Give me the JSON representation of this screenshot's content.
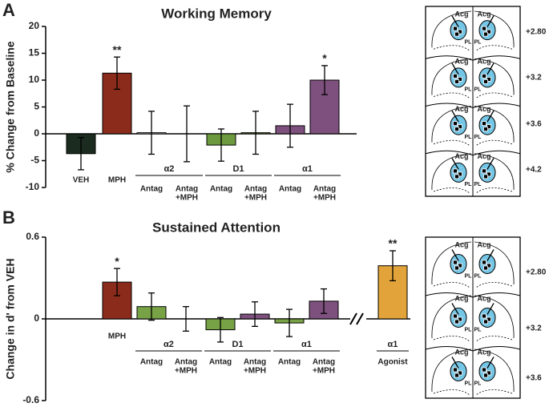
{
  "chart_data": [
    {
      "type": "bar",
      "panel_label": "A",
      "title": "Working Memory",
      "y_label": "% Change from Baseline",
      "categories": [
        "VEH",
        "MPH",
        "Antag",
        [
          "Antag",
          "+MPH"
        ],
        "Antag",
        [
          "Antag",
          "+MPH"
        ],
        "Antag",
        [
          "Antag",
          "+MPH"
        ]
      ],
      "groups": [
        null,
        null,
        "α2",
        "α2",
        "D1",
        "D1",
        "α1",
        "α1"
      ],
      "values": [
        -3.7,
        11.3,
        0.2,
        0,
        -2.1,
        0.2,
        1.5,
        10
      ],
      "errors": [
        3,
        3,
        4,
        5.2,
        3,
        4,
        4,
        2.7
      ],
      "annotations": [
        null,
        "**",
        null,
        null,
        null,
        null,
        null,
        "*"
      ],
      "colors": [
        "#1b2b1f",
        "#8b2b1b",
        "#ffffff",
        "#ffffff",
        "#6e9a3f",
        "#6e9a3f",
        "#7d507d",
        "#7d507d"
      ],
      "ylim": [
        -10,
        20
      ],
      "yticks": [
        -10,
        -5,
        0,
        5,
        10,
        15,
        20
      ]
    },
    {
      "type": "bar",
      "panel_label": "B",
      "title": "Sustained Attention",
      "y_label": "Change in d' from VEH",
      "categories": [
        "MPH",
        "Antag",
        [
          "Antag",
          "+MPH"
        ],
        "Antag",
        [
          "Antag",
          "+MPH"
        ],
        "Antag",
        [
          "Antag",
          "+MPH"
        ],
        "Agonist"
      ],
      "groups": [
        null,
        "α2",
        "α2",
        "D1",
        "D1",
        "α1",
        "α1",
        "α1"
      ],
      "values": [
        0.27,
        0.09,
        0,
        -0.08,
        0.035,
        -0.03,
        0.13,
        0.39
      ],
      "errors": [
        0.1,
        0.1,
        0.09,
        0.09,
        0.09,
        0.1,
        0.09,
        0.11
      ],
      "annotations": [
        "*",
        null,
        null,
        null,
        null,
        null,
        null,
        "**"
      ],
      "colors": [
        "#8b2b1b",
        "#77a246",
        "#ffffff",
        "#77a246",
        "#7d507d",
        "#77a246",
        "#7d507d",
        "#e2a43a"
      ],
      "axis_break": true,
      "ylim": [
        -0.6,
        0.6
      ],
      "yticks": [
        -0.6,
        0,
        0.6
      ]
    }
  ],
  "sections": [
    {
      "regions": [
        "Acg",
        "PL"
      ],
      "levels": [
        "+2.80",
        "+3.2",
        "+3.6",
        "+4.2"
      ]
    },
    {
      "regions": [
        "Acg",
        "PL"
      ],
      "levels": [
        "+2.80",
        "+3.2",
        "+3.6"
      ]
    }
  ]
}
